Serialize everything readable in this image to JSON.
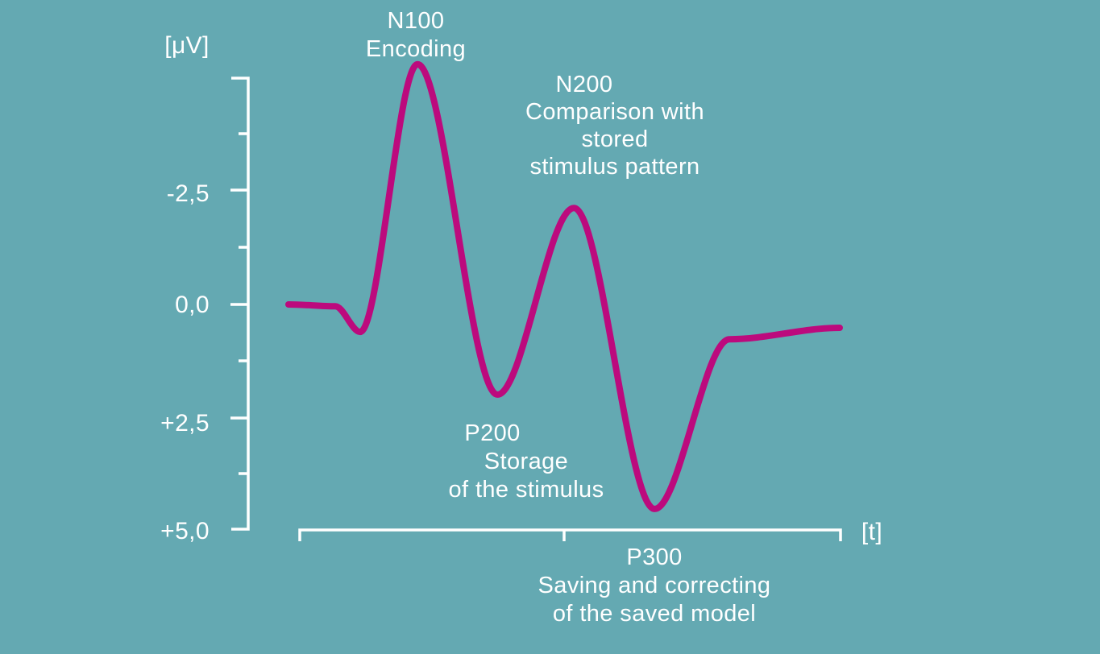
{
  "colors": {
    "background": "#64A9B2",
    "curve": "#BC0A7D",
    "axis": "#FFFFFF",
    "text": "#FFFFFF"
  },
  "chart_data": {
    "type": "line",
    "ylabel": "[μV]",
    "xlabel": "[t]",
    "y_axis": {
      "inverted": true,
      "tick_labels": [
        "-2,5",
        "0,0",
        "+2,5",
        "+5,0"
      ],
      "tick_values": [
        -2.5,
        0.0,
        2.5,
        5.0
      ],
      "range_uv": [
        -5.0,
        5.0
      ],
      "grid": false
    },
    "x_axis": {
      "tick_labels": [],
      "end_ticks": true,
      "mid_tick": true
    },
    "series": [
      {
        "name": "erp-waveform",
        "color": "#BC0A7D",
        "points": [
          {
            "t": 0.0,
            "uv": 0.0
          },
          {
            "t": 0.085,
            "uv": 0.04
          },
          {
            "t": 0.13,
            "uv": 0.6
          },
          {
            "t": 0.234,
            "uv": -5.25
          },
          {
            "t": 0.379,
            "uv": 1.97
          },
          {
            "t": 0.518,
            "uv": -2.11
          },
          {
            "t": 0.664,
            "uv": 4.47
          },
          {
            "t": 0.8,
            "uv": 0.76
          },
          {
            "t": 1.0,
            "uv": 0.51
          }
        ]
      }
    ],
    "annotations": [
      {
        "component": "N100",
        "amplitude_uv": -5.25,
        "lines": [
          "N100",
          "Encoding"
        ]
      },
      {
        "component": "N200",
        "amplitude_uv": -2.11,
        "lines": [
          "N200",
          "Comparison with",
          "stored",
          "stimulus pattern"
        ]
      },
      {
        "component": "P200",
        "amplitude_uv": 1.97,
        "lines": [
          "P200",
          "Storage",
          "of the stimulus"
        ]
      },
      {
        "component": "P300",
        "amplitude_uv": 4.47,
        "lines": [
          "P300",
          "Saving and correcting",
          "of the saved model"
        ]
      }
    ]
  }
}
